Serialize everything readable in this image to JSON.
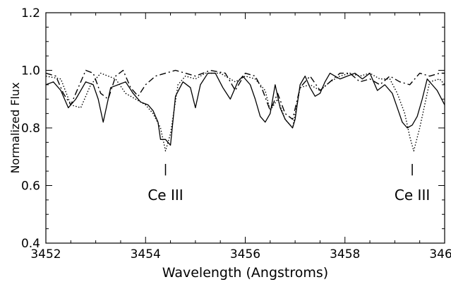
{
  "chart_data": {
    "type": "line",
    "title": "",
    "xlabel": "Wavelength (Angstroms)",
    "ylabel": "Normalized Flux",
    "xlim": [
      3452,
      3460
    ],
    "ylim": [
      0.4,
      1.2
    ],
    "x_ticks": [
      "3452",
      "3454",
      "3456",
      "3458",
      "3460"
    ],
    "y_ticks": [
      "0.4",
      "0.6",
      "0.8",
      "1.0",
      "1.2"
    ],
    "grid": false,
    "annotations": [
      {
        "text": "Ce III",
        "x": 3454.4
      },
      {
        "text": "Ce III",
        "x": 3459.35
      }
    ],
    "series": [
      {
        "style": "solid",
        "x": [
          3452.0,
          3452.15,
          3452.3,
          3452.45,
          3452.6,
          3452.8,
          3452.95,
          3453.05,
          3453.15,
          3453.3,
          3453.45,
          3453.6,
          3453.75,
          3453.9,
          3454.05,
          3454.15,
          3454.25,
          3454.3,
          3454.4,
          3454.5,
          3454.6,
          3454.75,
          3454.9,
          3455.0,
          3455.1,
          3455.25,
          3455.4,
          3455.55,
          3455.7,
          3455.85,
          3455.95,
          3456.1,
          3456.2,
          3456.3,
          3456.4,
          3456.5,
          3456.6,
          3456.7,
          3456.8,
          3456.9,
          3456.95,
          3457.0,
          3457.1,
          3457.2,
          3457.3,
          3457.4,
          3457.5,
          3457.6,
          3457.7,
          3457.8,
          3457.9,
          3458.05,
          3458.2,
          3458.35,
          3458.5,
          3458.65,
          3458.8,
          3458.95,
          3459.05,
          3459.15,
          3459.25,
          3459.35,
          3459.45,
          3459.55,
          3459.65,
          3459.75,
          3459.85,
          3460.0
        ],
        "y": [
          0.95,
          0.96,
          0.93,
          0.87,
          0.9,
          0.96,
          0.95,
          0.9,
          0.82,
          0.94,
          0.95,
          0.96,
          0.92,
          0.89,
          0.88,
          0.86,
          0.82,
          0.76,
          0.76,
          0.74,
          0.91,
          0.96,
          0.94,
          0.87,
          0.95,
          0.99,
          0.99,
          0.94,
          0.9,
          0.96,
          0.98,
          0.95,
          0.9,
          0.84,
          0.82,
          0.85,
          0.95,
          0.87,
          0.83,
          0.81,
          0.8,
          0.83,
          0.95,
          0.98,
          0.94,
          0.91,
          0.92,
          0.96,
          0.99,
          0.98,
          0.97,
          0.98,
          0.99,
          0.97,
          0.99,
          0.93,
          0.95,
          0.92,
          0.87,
          0.82,
          0.8,
          0.81,
          0.84,
          0.9,
          0.97,
          0.95,
          0.93,
          0.88
        ]
      },
      {
        "style": "dotted",
        "x": [
          3452.0,
          3452.3,
          3452.5,
          3452.7,
          3452.9,
          3453.1,
          3453.4,
          3453.6,
          3453.8,
          3454.0,
          3454.15,
          3454.3,
          3454.4,
          3454.5,
          3454.65,
          3454.8,
          3455.0,
          3455.2,
          3455.5,
          3455.8,
          3456.0,
          3456.2,
          3456.4,
          3456.5,
          3456.65,
          3456.8,
          3456.95,
          3457.1,
          3457.3,
          3457.5,
          3457.7,
          3457.9,
          3458.1,
          3458.3,
          3458.5,
          3458.7,
          3458.9,
          3459.05,
          3459.2,
          3459.3,
          3459.38,
          3459.5,
          3459.7,
          3459.9,
          3460.0
        ],
        "y": [
          0.98,
          0.97,
          0.88,
          0.87,
          0.95,
          0.99,
          0.97,
          0.92,
          0.9,
          0.88,
          0.85,
          0.8,
          0.72,
          0.78,
          0.95,
          0.98,
          0.97,
          0.99,
          0.99,
          0.96,
          0.98,
          0.97,
          0.93,
          0.86,
          0.9,
          0.83,
          0.8,
          0.94,
          0.95,
          0.93,
          0.96,
          0.98,
          0.99,
          0.98,
          0.99,
          0.97,
          0.97,
          0.92,
          0.85,
          0.77,
          0.72,
          0.8,
          0.96,
          0.97,
          0.95
        ]
      },
      {
        "style": "dash-dot",
        "x": [
          3452.0,
          3452.2,
          3452.35,
          3452.5,
          3452.65,
          3452.8,
          3452.95,
          3453.1,
          3453.25,
          3453.4,
          3453.55,
          3453.7,
          3453.85,
          3454.0,
          3454.2,
          3454.4,
          3454.6,
          3454.8,
          3455.0,
          3455.3,
          3455.6,
          3455.8,
          3456.0,
          3456.2,
          3456.35,
          3456.5,
          3456.65,
          3456.8,
          3456.95,
          3457.1,
          3457.3,
          3457.5,
          3457.7,
          3457.9,
          3458.1,
          3458.3,
          3458.5,
          3458.7,
          3458.9,
          3459.1,
          3459.3,
          3459.5,
          3459.7,
          3459.9,
          3460.0
        ],
        "y": [
          0.99,
          0.98,
          0.92,
          0.88,
          0.94,
          1.0,
          0.99,
          0.92,
          0.9,
          0.98,
          1.0,
          0.94,
          0.91,
          0.95,
          0.98,
          0.99,
          1.0,
          0.99,
          0.98,
          1.0,
          0.99,
          0.93,
          0.99,
          0.98,
          0.93,
          0.86,
          0.92,
          0.85,
          0.83,
          0.94,
          0.98,
          0.93,
          0.96,
          0.99,
          0.99,
          0.96,
          0.97,
          0.95,
          0.98,
          0.96,
          0.95,
          0.99,
          0.98,
          0.99,
          0.99
        ]
      }
    ]
  }
}
